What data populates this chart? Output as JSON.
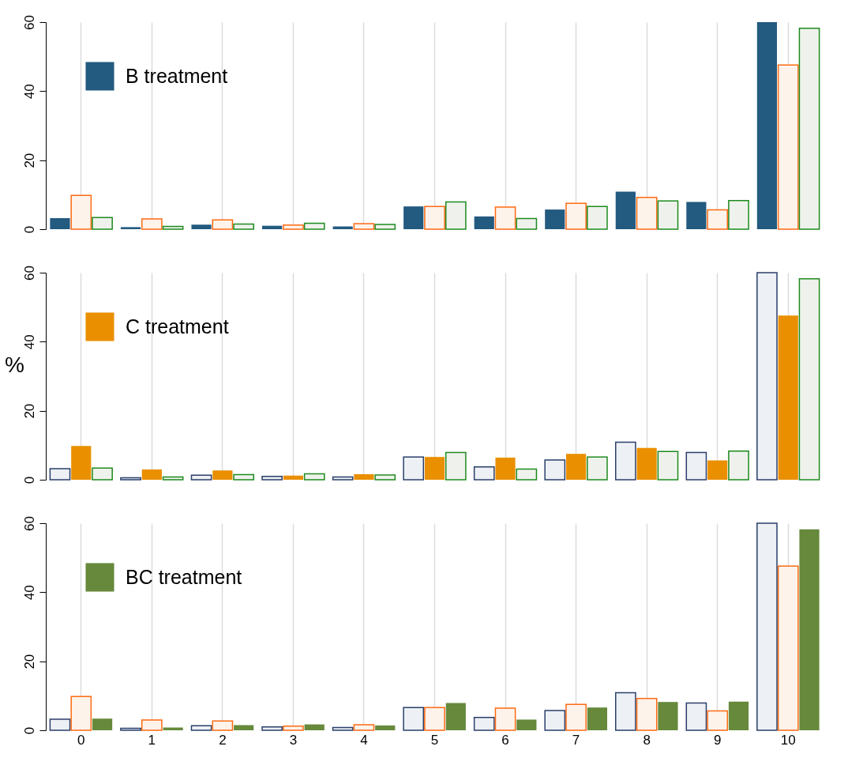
{
  "chart_data": [
    {
      "type": "bar",
      "categories": [
        "0",
        "1",
        "2",
        "3",
        "4",
        "5",
        "6",
        "7",
        "8",
        "9",
        "10"
      ],
      "ylim": [
        0,
        60
      ],
      "yticks": [
        0,
        20,
        40,
        60
      ],
      "grid": "x",
      "legend": "top left",
      "tick_labels": "y",
      "series": [
        {
          "name": "B treatment",
          "color": "#235a80",
          "values": [
            3.2,
            0.6,
            1.3,
            1.0,
            0.8,
            6.6,
            3.7,
            5.7,
            10.9,
            7.9,
            60
          ]
        },
        {
          "color": "#fdf3ea",
          "values": [
            9.8,
            3.0,
            2.7,
            1.2,
            1.6,
            6.6,
            6.4,
            7.5,
            9.2,
            5.6,
            47.6
          ]
        },
        {
          "color": "#eff2ec",
          "values": [
            3.4,
            0.8,
            1.5,
            1.7,
            1.4,
            7.9,
            3.1,
            6.6,
            8.2,
            8.3,
            58.2
          ]
        }
      ]
    },
    {
      "type": "bar",
      "categories": [
        "0",
        "1",
        "2",
        "3",
        "4",
        "5",
        "6",
        "7",
        "8",
        "9",
        "10"
      ],
      "ylim": [
        0,
        60
      ],
      "yticks": [
        0,
        20,
        40,
        60
      ],
      "grid": "x",
      "legend": "top left",
      "tick_labels": "y",
      "ylabel": "%",
      "series": [
        {
          "color": "#edf0f4",
          "values": [
            3.2,
            0.6,
            1.3,
            1.0,
            0.8,
            6.6,
            3.7,
            5.7,
            10.9,
            7.9,
            60
          ]
        },
        {
          "name": "C treatment",
          "color": "#ea8f00",
          "values": [
            9.8,
            3.0,
            2.7,
            1.2,
            1.6,
            6.6,
            6.4,
            7.5,
            9.2,
            5.6,
            47.6
          ]
        },
        {
          "color": "#eff2ec",
          "values": [
            3.4,
            0.8,
            1.5,
            1.7,
            1.4,
            7.9,
            3.1,
            6.6,
            8.2,
            8.3,
            58.2
          ]
        }
      ]
    },
    {
      "type": "bar",
      "categories": [
        "0",
        "1",
        "2",
        "3",
        "4",
        "5",
        "6",
        "7",
        "8",
        "9",
        "10"
      ],
      "ylim": [
        0,
        60
      ],
      "yticks": [
        0,
        20,
        40,
        60
      ],
      "grid": "x",
      "legend": "top left",
      "series": [
        {
          "color": "#edf0f4",
          "values": [
            3.2,
            0.6,
            1.3,
            1.0,
            0.8,
            6.6,
            3.7,
            5.7,
            10.9,
            7.9,
            60
          ]
        },
        {
          "color": "#fdf3ea",
          "values": [
            9.8,
            3.0,
            2.7,
            1.2,
            1.6,
            6.6,
            6.4,
            7.5,
            9.2,
            5.6,
            47.6
          ]
        },
        {
          "name": "BC treatment",
          "color": "#66893b",
          "values": [
            3.4,
            0.8,
            1.5,
            1.7,
            1.4,
            7.9,
            3.1,
            6.6,
            8.2,
            8.3,
            58.2
          ]
        }
      ]
    }
  ]
}
